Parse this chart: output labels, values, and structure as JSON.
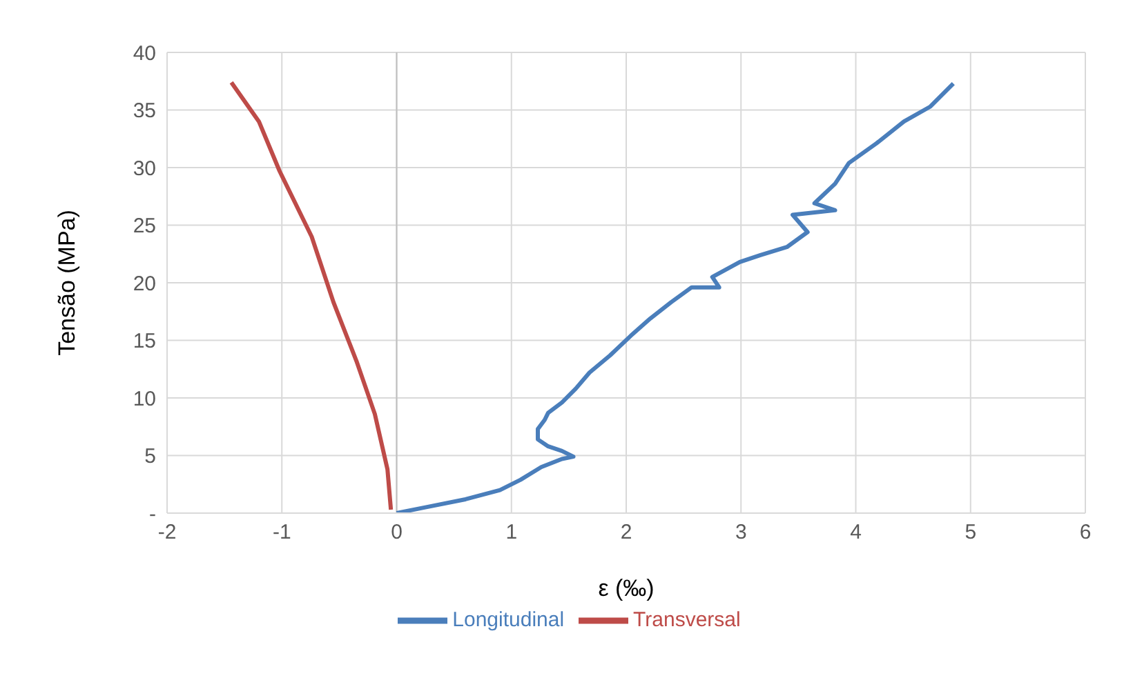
{
  "chart_data": {
    "type": "line",
    "xlabel": "ε (‰)",
    "ylabel": "Tensão (MPa)",
    "xlim": [
      -2,
      6
    ],
    "xticks": [
      -2,
      -1,
      0,
      1,
      2,
      3,
      4,
      5,
      6
    ],
    "ylim": [
      0,
      40
    ],
    "yticks": [
      {
        "value": 0,
        "label": "-"
      },
      5,
      10,
      15,
      20,
      25,
      30,
      35,
      40
    ],
    "grid": true,
    "legend": "bottom",
    "marker": "none",
    "line_style": "solid",
    "series": [
      {
        "name": "Longitudinal",
        "color": "#4a7ebb",
        "x": [
          0,
          0.25,
          0.6,
          0.9,
          1.08,
          1.26,
          1.44,
          1.54,
          1.44,
          1.32,
          1.23,
          1.23,
          1.29,
          1.32,
          1.44,
          1.56,
          1.68,
          1.86,
          2.04,
          2.21,
          2.39,
          2.57,
          2.81,
          2.75,
          2.99,
          3.17,
          3.4,
          3.58,
          3.45,
          3.82,
          3.64,
          3.82,
          3.94,
          4.18,
          4.42,
          4.65,
          4.85
        ],
        "values": [
          0,
          0.5,
          1.2,
          2,
          2.9,
          4,
          4.7,
          4.9,
          5.4,
          5.8,
          6.4,
          7.3,
          8.1,
          8.7,
          9.6,
          10.8,
          12.2,
          13.7,
          15.4,
          16.9,
          18.3,
          19.6,
          19.6,
          20.5,
          21.8,
          22.4,
          23.1,
          24.4,
          25.9,
          26.3,
          26.9,
          28.6,
          30.4,
          32.1,
          34,
          35.3,
          37.3
        ]
      },
      {
        "name": "Transversal",
        "color": "#be4b48",
        "x": [
          -0.05,
          -0.08,
          -0.19,
          -0.35,
          -0.55,
          -0.74,
          -1.02,
          -1.2,
          -1.44
        ],
        "values": [
          0.3,
          3.8,
          8.6,
          13.2,
          18.3,
          24,
          29.7,
          34,
          37.4
        ]
      }
    ]
  }
}
